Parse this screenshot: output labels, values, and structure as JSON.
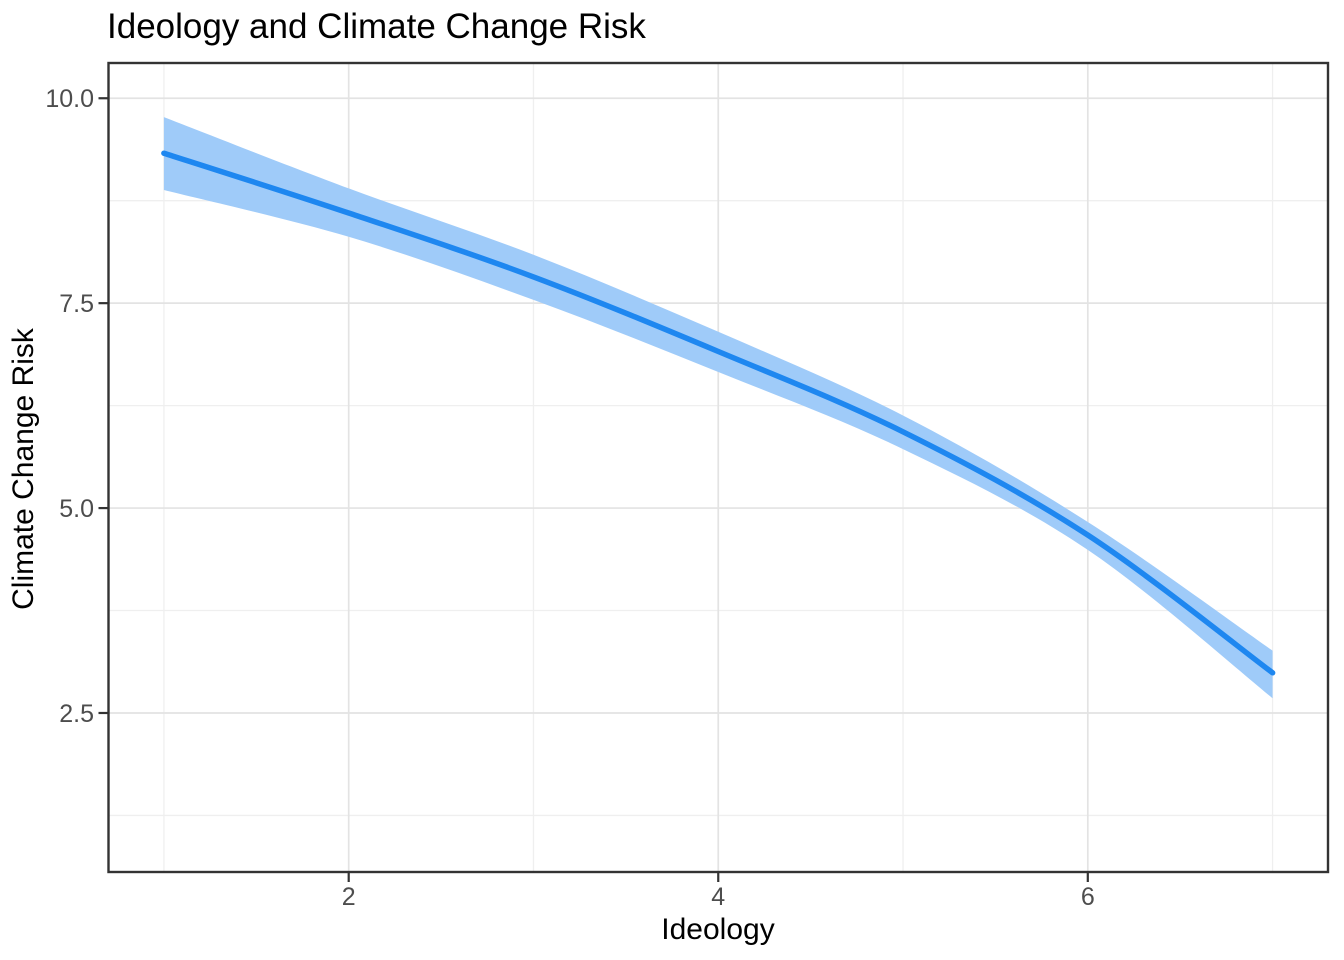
{
  "title": "Ideology and Climate Change Risk",
  "chart_data": {
    "type": "line",
    "title": "Ideology and Climate Change Risk",
    "xlabel": "Ideology",
    "ylabel": "Climate Change Risk",
    "xlim": [
      0.7,
      7.3
    ],
    "ylim": [
      0.56,
      10.43
    ],
    "grid": true,
    "legend_position": "none",
    "x_major_ticks": [
      2,
      4,
      6
    ],
    "x_tick_labels": [
      "2",
      "4",
      "6"
    ],
    "x_minor_gridlines": [
      1,
      3,
      5,
      7
    ],
    "y_major_ticks": [
      2.5,
      5.0,
      7.5,
      10.0
    ],
    "y_tick_labels": [
      "2.5",
      "5.0",
      "7.5",
      "10.0"
    ],
    "y_minor_gridlines": [
      1.25,
      3.75,
      6.25,
      8.75
    ],
    "x": [
      1,
      2,
      3,
      4,
      5,
      6,
      7
    ],
    "series": [
      {
        "name": "fitted_line",
        "values": [
          9.33,
          8.6,
          7.82,
          6.91,
          5.93,
          4.67,
          2.99
        ]
      },
      {
        "name": "confidence_upper",
        "values": [
          9.77,
          8.9,
          8.09,
          7.15,
          6.13,
          4.83,
          3.26
        ]
      },
      {
        "name": "confidence_lower",
        "values": [
          8.88,
          8.31,
          7.54,
          6.66,
          5.72,
          4.49,
          2.68
        ]
      }
    ],
    "colors": {
      "line": "#1E87F0",
      "ribbon": "#9FCBF9",
      "grid_major": "#E3E3E3",
      "grid_minor": "#EFEFEF",
      "panel_border": "#333333",
      "tick_mark": "#333333",
      "tick_label": "#4D4D4D",
      "title": "#000000",
      "axis_title": "#000000",
      "background": "#FFFFFF"
    }
  }
}
